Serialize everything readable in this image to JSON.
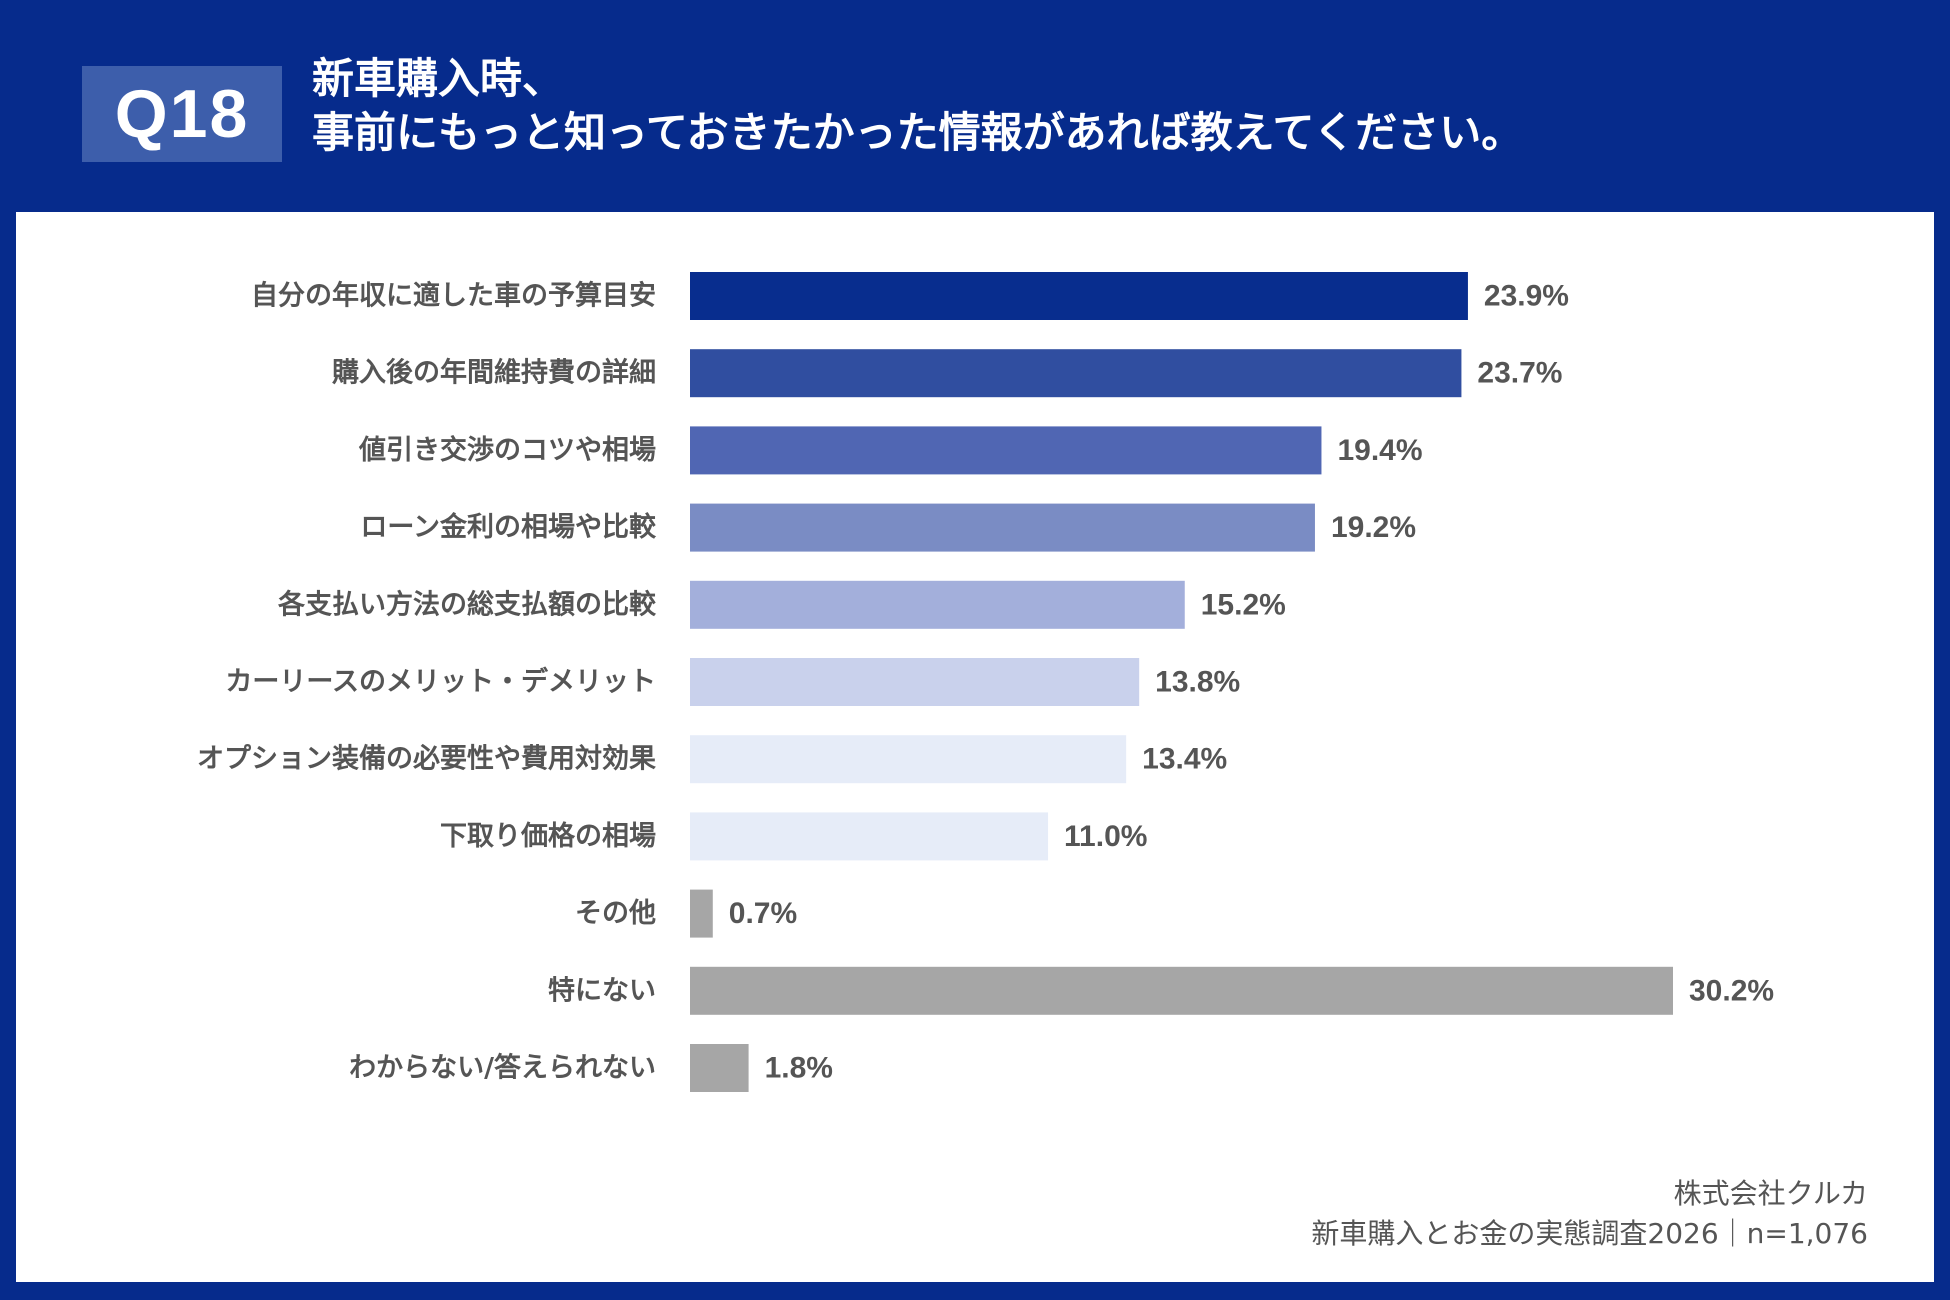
{
  "header": {
    "question_badge": "Q18",
    "title_line1": "新車購入時、",
    "title_line2": "事前にもっと知っておきたかった情報があれば教えてください。"
  },
  "chart_data": {
    "type": "bar",
    "orientation": "horizontal",
    "categories": [
      "自分の年収に適した車の予算目安",
      "購入後の年間維持費の詳細",
      "値引き交渉のコツや相場",
      "ローン金利の相場や比較",
      "各支払い方法の総支払額の比較",
      "カーリースのメリット・デメリット",
      "オプション装備の必要性や費用対効果",
      "下取り価格の相場",
      "その他",
      "特にない",
      "わからない/答えられない"
    ],
    "values": [
      23.9,
      23.7,
      19.4,
      19.2,
      15.2,
      13.8,
      13.4,
      11.0,
      0.7,
      30.2,
      1.8
    ],
    "value_labels": [
      "23.9%",
      "23.7%",
      "19.4%",
      "19.2%",
      "15.2%",
      "13.8%",
      "13.4%",
      "11.0%",
      "0.7%",
      "30.2%",
      "1.8%"
    ],
    "colors": [
      "#082d8e",
      "#304ea0",
      "#5066b3",
      "#7a8cc4",
      "#a3afdb",
      "#c9d1ec",
      "#e6ecf8",
      "#e6ecf8",
      "#a6a6a6",
      "#a6a6a6",
      "#a6a6a6"
    ],
    "xlim": [
      0,
      30.2
    ],
    "unit": "%",
    "grid": false,
    "legend": "none"
  },
  "source": {
    "company": "株式会社クルカ",
    "survey": "新車購入とお金の実態調査2026｜n=1,076"
  }
}
